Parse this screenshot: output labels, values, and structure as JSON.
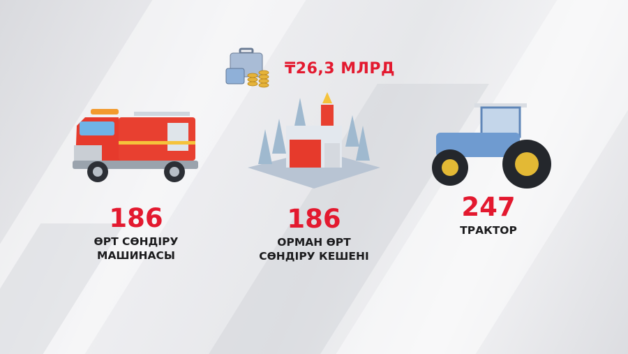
{
  "budget": {
    "amount": "₸26,3 МЛРД",
    "icon": "briefcase-with-coins-icon"
  },
  "items": [
    {
      "value": "186",
      "label_line1": "ӨРТ СӨНДІРУ",
      "label_line2": "МАШИНАСЫ",
      "icon": "fire-truck-icon"
    },
    {
      "value": "186",
      "label_line1": "ОРМАН ӨРТ",
      "label_line2": "СӨНДІРУ КЕШЕНІ",
      "icon": "fire-station-icon"
    },
    {
      "value": "247",
      "label_line1": "ТРАКТОР",
      "label_line2": "",
      "icon": "tractor-icon"
    }
  ],
  "colors": {
    "accent": "#e3192f",
    "text": "#1b1b1d"
  }
}
